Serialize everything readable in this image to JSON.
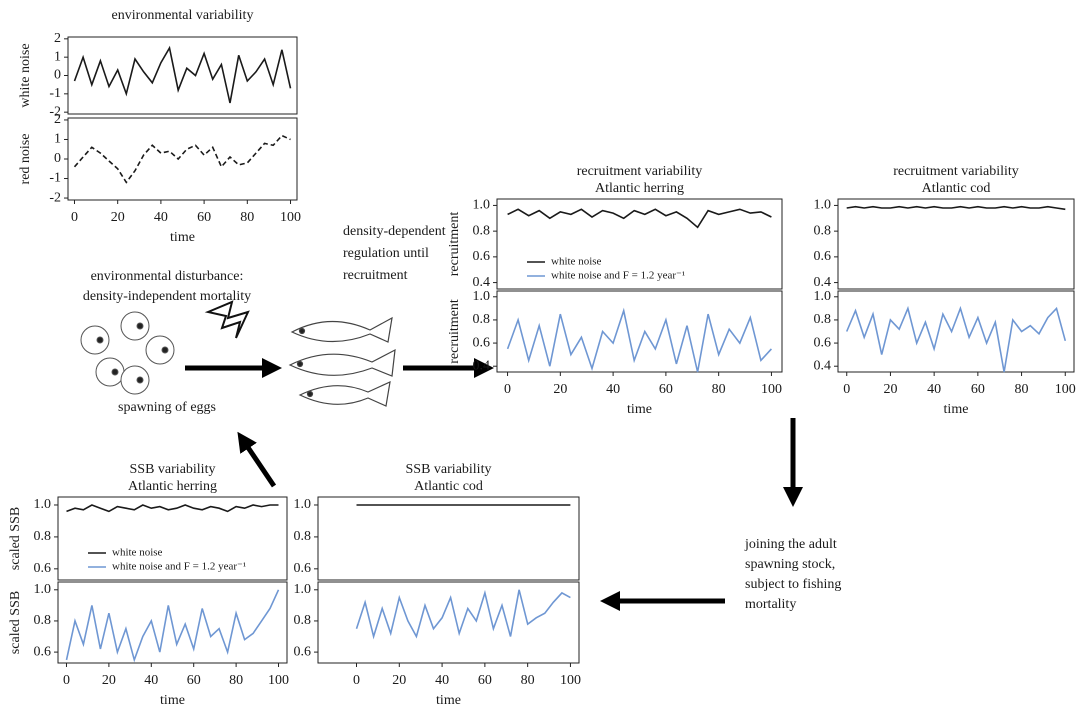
{
  "chart_data": [
    {
      "type": "line",
      "title": "environmental variability",
      "ylabel": "white noise",
      "x": [
        0,
        4,
        8,
        12,
        16,
        20,
        24,
        28,
        32,
        36,
        40,
        44,
        48,
        52,
        56,
        60,
        64,
        68,
        72,
        76,
        80,
        84,
        88,
        92,
        96,
        100
      ],
      "series": [
        {
          "color": "#1a1a1a",
          "values": [
            -0.3,
            1.0,
            -0.5,
            0.8,
            -0.6,
            0.3,
            -1.0,
            0.9,
            0.2,
            -0.4,
            0.7,
            1.5,
            -0.8,
            0.4,
            0.0,
            1.2,
            -0.2,
            0.6,
            -1.5,
            1.1,
            -0.3,
            0.2,
            0.9,
            -0.5,
            1.4,
            -0.7
          ]
        }
      ],
      "xlim": [
        -3,
        103
      ],
      "ylim": [
        -2.1,
        2.1
      ],
      "yticks": [
        -2,
        -1,
        0,
        1,
        2
      ]
    },
    {
      "type": "line",
      "ylabel": "red noise",
      "xlabel": "time",
      "x": [
        0,
        4,
        8,
        12,
        16,
        20,
        24,
        28,
        32,
        36,
        40,
        44,
        48,
        52,
        56,
        60,
        64,
        68,
        72,
        76,
        80,
        84,
        88,
        92,
        96,
        100
      ],
      "series": [
        {
          "color": "#1a1a1a",
          "dash": true,
          "values": [
            -0.4,
            0.1,
            0.6,
            0.3,
            -0.1,
            -0.5,
            -1.2,
            -0.6,
            0.2,
            0.7,
            0.3,
            0.4,
            0.0,
            0.5,
            0.7,
            0.2,
            0.6,
            -0.4,
            0.1,
            -0.3,
            -0.2,
            0.3,
            0.8,
            0.7,
            1.2,
            1.0
          ]
        }
      ],
      "xlim": [
        -3,
        103
      ],
      "ylim": [
        -2.1,
        2.1
      ],
      "yticks": [
        -2,
        -1,
        0,
        1,
        2
      ],
      "xticks": [
        0,
        20,
        40,
        60,
        80,
        100
      ]
    },
    {
      "type": "line",
      "title": "recruitment variability",
      "subtitle": "Atlantic herring",
      "ylabel": "recruitment",
      "xlabel": "time",
      "legend": "lower left",
      "x": [
        0,
        4,
        8,
        12,
        16,
        20,
        24,
        28,
        32,
        36,
        40,
        44,
        48,
        52,
        56,
        60,
        64,
        68,
        72,
        76,
        80,
        84,
        88,
        92,
        96,
        100
      ],
      "series": [
        {
          "name": "white noise",
          "color": "#1a1a1a",
          "panel": 0,
          "values": [
            0.93,
            0.97,
            0.92,
            0.96,
            0.9,
            0.95,
            0.93,
            0.97,
            0.91,
            0.96,
            0.94,
            0.9,
            0.96,
            0.93,
            0.97,
            0.92,
            0.95,
            0.9,
            0.83,
            0.96,
            0.93,
            0.95,
            0.97,
            0.94,
            0.95,
            0.91
          ]
        },
        {
          "name": "white noise and F = 1.2 year⁻¹",
          "color": "#6f97d3",
          "panel": 1,
          "values": [
            0.55,
            0.8,
            0.45,
            0.75,
            0.4,
            0.85,
            0.5,
            0.65,
            0.38,
            0.7,
            0.6,
            0.88,
            0.45,
            0.7,
            0.55,
            0.8,
            0.42,
            0.75,
            0.35,
            0.85,
            0.5,
            0.72,
            0.6,
            0.82,
            0.45,
            0.55
          ]
        }
      ],
      "xlim": [
        -4,
        104
      ],
      "ylim": [
        0.35,
        1.05
      ],
      "yticks": [
        0.4,
        0.6,
        0.8,
        {
          "value": 1,
          "label": "1.0"
        }
      ],
      "xticks": [
        0,
        20,
        40,
        60,
        80,
        100
      ]
    },
    {
      "type": "line",
      "title": "recruitment variability",
      "subtitle": "Atlantic cod",
      "xlabel": "time",
      "x": [
        0,
        4,
        8,
        12,
        16,
        20,
        24,
        28,
        32,
        36,
        40,
        44,
        48,
        52,
        56,
        60,
        64,
        68,
        72,
        76,
        80,
        84,
        88,
        92,
        96,
        100
      ],
      "series": [
        {
          "color": "#1a1a1a",
          "panel": 0,
          "values": [
            0.98,
            0.99,
            0.98,
            0.99,
            0.98,
            0.98,
            0.99,
            0.98,
            0.99,
            0.98,
            0.99,
            0.98,
            0.98,
            0.99,
            0.98,
            0.99,
            0.98,
            0.98,
            0.99,
            0.98,
            0.99,
            0.98,
            0.98,
            0.99,
            0.98,
            0.97
          ]
        },
        {
          "color": "#6f97d3",
          "panel": 1,
          "values": [
            0.7,
            0.88,
            0.65,
            0.85,
            0.5,
            0.8,
            0.72,
            0.9,
            0.6,
            0.78,
            0.55,
            0.85,
            0.7,
            0.9,
            0.65,
            0.82,
            0.6,
            0.78,
            0.35,
            0.8,
            0.7,
            0.75,
            0.68,
            0.82,
            0.9,
            0.62
          ]
        }
      ],
      "xlim": [
        -4,
        104
      ],
      "ylim": [
        0.35,
        1.05
      ],
      "yticks": [
        0.4,
        0.6,
        0.8,
        {
          "value": 1,
          "label": "1.0"
        }
      ],
      "xticks": [
        0,
        20,
        40,
        60,
        80,
        100
      ]
    },
    {
      "type": "line",
      "title": "SSB variability",
      "subtitle": "Atlantic herring",
      "ylabel": "scaled SSB",
      "xlabel": "time",
      "legend": "lower left",
      "x": [
        0,
        4,
        8,
        12,
        16,
        20,
        24,
        28,
        32,
        36,
        40,
        44,
        48,
        52,
        56,
        60,
        64,
        68,
        72,
        76,
        80,
        84,
        88,
        92,
        96,
        100
      ],
      "series": [
        {
          "name": "white noise",
          "color": "#1a1a1a",
          "panel": 0,
          "values": [
            0.96,
            0.98,
            0.97,
            1.0,
            0.98,
            0.96,
            0.99,
            0.98,
            0.97,
            1.0,
            0.98,
            0.99,
            0.97,
            0.98,
            1.0,
            0.98,
            0.97,
            0.99,
            0.98,
            0.96,
            0.99,
            0.98,
            1.0,
            0.99,
            1.0,
            1.0
          ]
        },
        {
          "name": "white noise and F = 1.2 year⁻¹",
          "color": "#6f97d3",
          "panel": 1,
          "values": [
            0.55,
            0.8,
            0.65,
            0.9,
            0.62,
            0.85,
            0.6,
            0.75,
            0.55,
            0.7,
            0.8,
            0.6,
            0.9,
            0.65,
            0.78,
            0.62,
            0.88,
            0.7,
            0.75,
            0.6,
            0.85,
            0.68,
            0.72,
            0.8,
            0.88,
            1.0
          ]
        }
      ],
      "xlim": [
        -4,
        104
      ],
      "ylim": [
        0.53,
        1.05
      ],
      "yticks": [
        0.6,
        0.8,
        {
          "value": 1,
          "label": "1.0"
        }
      ],
      "xticks": [
        0,
        20,
        40,
        60,
        80,
        100
      ]
    },
    {
      "type": "line",
      "title": "SSB variability",
      "subtitle": "Atlantic cod",
      "xlabel": "time",
      "x": [
        0,
        4,
        8,
        12,
        16,
        20,
        24,
        28,
        32,
        36,
        40,
        44,
        48,
        52,
        56,
        60,
        64,
        68,
        72,
        76,
        80,
        84,
        88,
        92,
        96,
        100
      ],
      "series": [
        {
          "color": "#1a1a1a",
          "panel": 0,
          "values": [
            1.0,
            1.0,
            1.0,
            1.0,
            1.0,
            1.0,
            1.0,
            1.0,
            1.0,
            1.0,
            1.0,
            1.0,
            1.0,
            1.0,
            1.0,
            1.0,
            1.0,
            1.0,
            1.0,
            1.0,
            1.0,
            1.0,
            1.0,
            1.0,
            1.0,
            1.0
          ]
        },
        {
          "color": "#6f97d3",
          "panel": 1,
          "values": [
            0.75,
            0.92,
            0.7,
            0.88,
            0.72,
            0.95,
            0.8,
            0.7,
            0.9,
            0.75,
            0.82,
            0.95,
            0.72,
            0.88,
            0.8,
            0.98,
            0.75,
            0.9,
            0.7,
            1.0,
            0.78,
            0.82,
            0.85,
            0.92,
            0.98,
            0.95
          ]
        }
      ],
      "xlim": [
        -18,
        104
      ],
      "ylim": [
        0.53,
        1.05
      ],
      "yticks": [
        0.6,
        0.8,
        {
          "value": 1,
          "label": "1.0"
        }
      ],
      "xticks": [
        0,
        20,
        40,
        60,
        80,
        100
      ]
    }
  ],
  "diagram": {
    "disturbance": [
      "environmental disturbance:",
      "density-independent mortality"
    ],
    "eggs": "spawning of eggs",
    "regulation": [
      "density-dependent",
      "regulation until",
      "recruitment"
    ],
    "joining": [
      "joining the adult",
      "spawning stock,",
      "subject to fishing",
      "mortality"
    ]
  }
}
